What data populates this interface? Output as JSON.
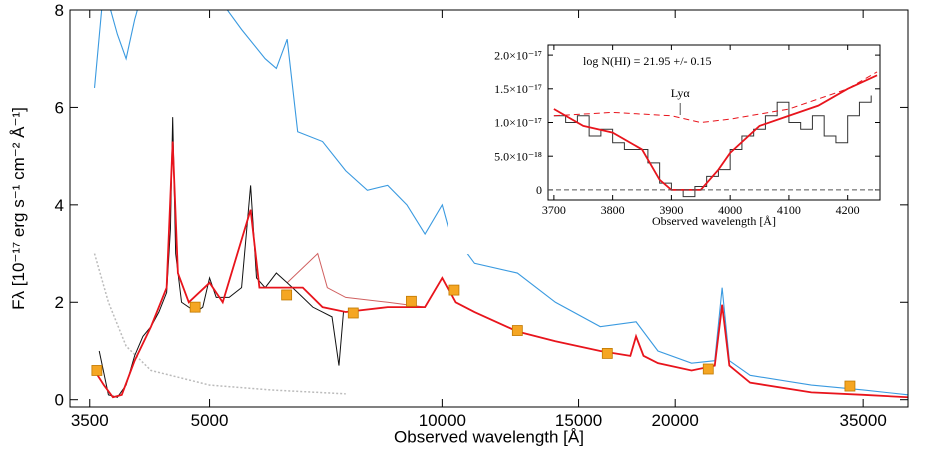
{
  "chart_data": [
    {
      "type": "line",
      "xlabel": "Observed wavelength  [Å]",
      "ylabel": "Fλ [10⁻¹⁷ erg s⁻¹ cm⁻² Å⁻¹]",
      "xscale": "log",
      "xlim": [
        3300,
        40000
      ],
      "ylim": [
        -0.15,
        8
      ],
      "xticks": [
        3500,
        5000,
        10000,
        15000,
        20000,
        35000
      ],
      "yticks": [
        0,
        2,
        4,
        6,
        8
      ],
      "series": [
        {
          "color": "#bbbbbb",
          "dash": "2,2",
          "width": 1.5,
          "x": [
            3550,
            3700,
            3900,
            4200,
            5000,
            6000,
            7500
          ],
          "values": [
            3.0,
            2.0,
            1.1,
            0.6,
            0.3,
            0.2,
            0.12
          ]
        },
        {
          "color": "#3a9ae0",
          "width": 1.1,
          "x": [
            3550,
            3650,
            3800,
            3900,
            4000,
            4200,
            5000,
            5500,
            5900,
            6100,
            6300,
            6500,
            7000,
            7500,
            8000,
            8500,
            9000,
            9500,
            10000,
            10200,
            11000,
            12500,
            14000,
            16000,
            17800,
            19000,
            21000,
            22500,
            23000,
            23500,
            25000,
            30000,
            35000,
            40000
          ],
          "values": [
            6.4,
            8.5,
            7.5,
            7.0,
            7.8,
            9.0,
            8.5,
            7.6,
            7.0,
            6.8,
            7.4,
            5.5,
            5.3,
            4.7,
            4.3,
            4.4,
            4.0,
            3.4,
            4.0,
            3.5,
            2.8,
            2.6,
            2.0,
            1.5,
            1.6,
            1.0,
            0.75,
            0.8,
            2.3,
            0.8,
            0.5,
            0.3,
            0.2,
            0.1
          ]
        },
        {
          "color": "#d06060",
          "width": 1,
          "x": [
            6300,
            6900,
            7100,
            7500,
            8500,
            9500
          ],
          "values": [
            2.4,
            3.0,
            2.3,
            2.1,
            2.0,
            1.9
          ]
        },
        {
          "color": "#111111",
          "width": 1,
          "x": [
            3600,
            3700,
            3800,
            3900,
            4000,
            4100,
            4200,
            4300,
            4400,
            4450,
            4480,
            4520,
            4600,
            4800,
            4900,
            5000,
            5100,
            5300,
            5500,
            5650,
            5750,
            5900,
            6100,
            6300,
            6500,
            6800,
            7000,
            7200,
            7350,
            7450
          ],
          "values": [
            1.0,
            0.1,
            0.05,
            0.3,
            0.9,
            1.3,
            1.5,
            1.8,
            2.2,
            3.5,
            5.8,
            3.0,
            2.0,
            1.8,
            1.9,
            2.5,
            2.1,
            2.1,
            2.3,
            4.4,
            2.5,
            2.3,
            2.6,
            2.4,
            2.2,
            1.9,
            1.8,
            1.7,
            0.7,
            1.8
          ]
        },
        {
          "color": "#e8141c",
          "width": 1.8,
          "x": [
            3550,
            3650,
            3750,
            3850,
            4000,
            4200,
            4400,
            4480,
            4550,
            4700,
            5000,
            5200,
            5650,
            5800,
            6200,
            6600,
            7000,
            7500,
            8500,
            9500,
            10000,
            10400,
            11000,
            12500,
            14000,
            16000,
            17500,
            17800,
            18200,
            19000,
            21000,
            22500,
            23000,
            23500,
            25000,
            30000,
            35000,
            40000
          ],
          "values": [
            0.6,
            0.3,
            0.05,
            0.1,
            0.8,
            1.5,
            2.3,
            5.3,
            2.6,
            2.0,
            2.4,
            2.0,
            3.9,
            2.3,
            2.3,
            2.3,
            1.9,
            1.8,
            1.9,
            1.9,
            2.5,
            2.0,
            1.8,
            1.4,
            1.2,
            1.0,
            0.9,
            1.3,
            0.9,
            0.75,
            0.6,
            0.7,
            1.95,
            0.7,
            0.35,
            0.15,
            0.1,
            0.05
          ]
        },
        {
          "color": "#f5a623",
          "marker": "square",
          "x": [
            3575,
            4790,
            6290,
            7670,
            9120,
            10350,
            12500,
            16340,
            22070,
            33650
          ],
          "values": [
            0.6,
            1.9,
            2.15,
            1.78,
            2.02,
            2.25,
            1.42,
            0.95,
            0.63,
            0.28
          ]
        }
      ]
    },
    {
      "type": "line",
      "annotation": "log N(HI) = 21.95 +/- 0.15",
      "line_label": "Lyα",
      "xlabel": "Observed wavelength  [Å]",
      "xscale": "linear",
      "xlim": [
        3690,
        4255
      ],
      "ylim": [
        -1.5e-18,
        2.15e-17
      ],
      "xticks": [
        3700,
        3800,
        3900,
        4000,
        4100,
        4200
      ],
      "yticks": [
        {
          "value": 2e-17,
          "label": "2.0×10⁻¹⁷"
        },
        {
          "value": 1.5e-17,
          "label": "1.5×10⁻¹⁷"
        },
        {
          "value": 1e-17,
          "label": "1.0×10⁻¹⁷"
        },
        {
          "value": 5e-18,
          "label": "5.0×10⁻¹⁸"
        },
        0
      ],
      "series": [
        {
          "color": "#333333",
          "width": 1,
          "step": true,
          "x": [
            3700,
            3720,
            3740,
            3760,
            3780,
            3800,
            3820,
            3840,
            3860,
            3880,
            3900,
            3920,
            3940,
            3960,
            3980,
            4000,
            4020,
            4040,
            4060,
            4080,
            4100,
            4120,
            4140,
            4160,
            4180,
            4200,
            4220,
            4240
          ],
          "values": [
            1.1e-17,
            1e-17,
            1.1e-17,
            8e-18,
            9e-18,
            7e-18,
            6e-18,
            6e-18,
            4e-18,
            1e-18,
            0,
            -1e-18,
            5e-19,
            2e-18,
            3e-18,
            6e-18,
            8e-18,
            9e-18,
            1.1e-17,
            1.3e-17,
            1e-17,
            9e-18,
            1.1e-17,
            8e-18,
            7e-18,
            1.1e-17,
            1.3e-17,
            1.4e-17
          ]
        },
        {
          "color": "#e8141c",
          "width": 1,
          "dash": "6,4",
          "x": [
            3700,
            3800,
            3900,
            3950,
            4000,
            4100,
            4200,
            4250
          ],
          "values": [
            1.1e-17,
            1.15e-17,
            1.1e-17,
            1e-17,
            1.05e-17,
            1.2e-17,
            1.5e-17,
            1.75e-17
          ]
        },
        {
          "color": "#e8141c",
          "width": 1.8,
          "x": [
            3700,
            3750,
            3800,
            3850,
            3880,
            3900,
            3950,
            3980,
            4000,
            4050,
            4100,
            4150,
            4200,
            4250
          ],
          "values": [
            1.2e-17,
            9.5e-18,
            8.5e-18,
            6e-18,
            1.5e-18,
            0,
            0,
            3e-18,
            5.5e-18,
            9.5e-18,
            1.1e-17,
            1.25e-17,
            1.5e-17,
            1.7e-17
          ]
        }
      ]
    }
  ]
}
